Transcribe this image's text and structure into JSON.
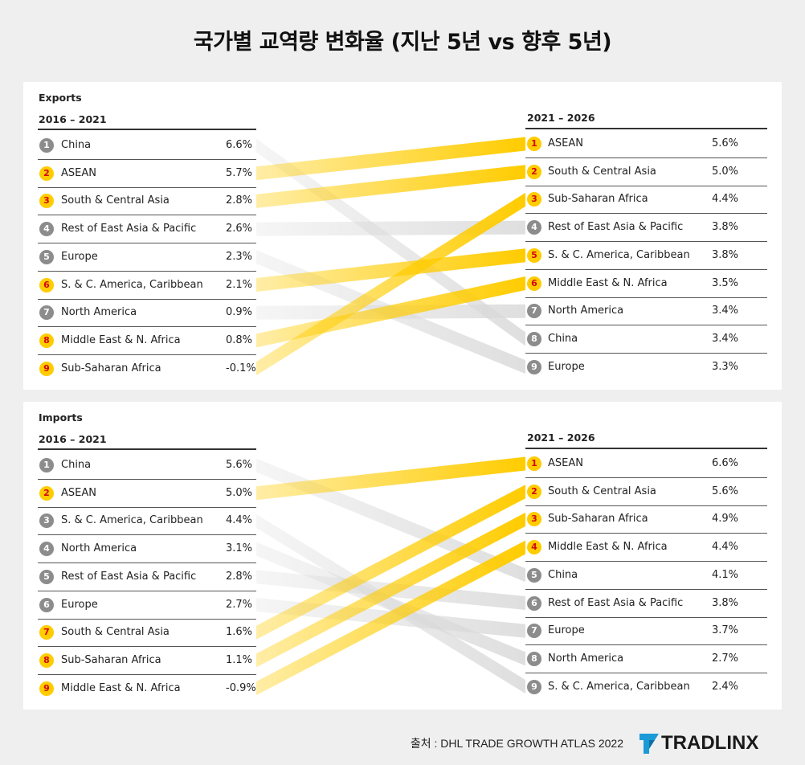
{
  "title": "국가별 교역량 변화율 (지난 5년 vs 향후 5년)",
  "source": "출처 : DHL TRADE GROWTH ATLAS 2022",
  "brand": "TRADLINX",
  "colors": {
    "highlight": "#ffcc00",
    "highlight_text": "#d40511",
    "neutral": "#8c8c8c"
  },
  "chart_data": [
    {
      "type": "slope",
      "title": "Exports",
      "left_period": "2016 – 2021",
      "right_period": "2021 – 2026",
      "left": [
        {
          "rank": "1",
          "name": "China",
          "value": "6.6%"
        },
        {
          "rank": "2",
          "name": "ASEAN",
          "value": "5.7%"
        },
        {
          "rank": "3",
          "name": "South & Central Asia",
          "value": "2.8%"
        },
        {
          "rank": "4",
          "name": "Rest of East Asia & Pacific",
          "value": "2.6%"
        },
        {
          "rank": "5",
          "name": "Europe",
          "value": "2.3%"
        },
        {
          "rank": "6",
          "name": "S. & C. America, Caribbean",
          "value": "2.1%"
        },
        {
          "rank": "7",
          "name": "North America",
          "value": "0.9%"
        },
        {
          "rank": "8",
          "name": "Middle East & N. Africa",
          "value": "0.8%"
        },
        {
          "rank": "9",
          "name": "Sub-Saharan Africa",
          "value": "-0.1%"
        }
      ],
      "right": [
        {
          "rank": "1",
          "name": "ASEAN",
          "value": "5.6%"
        },
        {
          "rank": "2",
          "name": "South & Central Asia",
          "value": "5.0%"
        },
        {
          "rank": "3",
          "name": "Sub-Saharan Africa",
          "value": "4.4%"
        },
        {
          "rank": "4",
          "name": "Rest of East Asia & Pacific",
          "value": "3.8%"
        },
        {
          "rank": "5",
          "name": "S. & C. America, Caribbean",
          "value": "3.8%"
        },
        {
          "rank": "6",
          "name": "Middle East & N. Africa",
          "value": "3.5%"
        },
        {
          "rank": "7",
          "name": "North America",
          "value": "3.4%"
        },
        {
          "rank": "8",
          "name": "China",
          "value": "3.4%"
        },
        {
          "rank": "9",
          "name": "Europe",
          "value": "3.3%"
        }
      ],
      "highlight_left_ranks": [
        2,
        3,
        6,
        8,
        9
      ],
      "highlight_right_ranks": [
        1,
        2,
        3,
        5,
        6
      ]
    },
    {
      "type": "slope",
      "title": "Imports",
      "left_period": "2016 – 2021",
      "right_period": "2021 – 2026",
      "left": [
        {
          "rank": "1",
          "name": "China",
          "value": "5.6%"
        },
        {
          "rank": "2",
          "name": "ASEAN",
          "value": "5.0%"
        },
        {
          "rank": "3",
          "name": "S. & C. America, Caribbean",
          "value": "4.4%"
        },
        {
          "rank": "4",
          "name": "North America",
          "value": "3.1%"
        },
        {
          "rank": "5",
          "name": "Rest of East Asia & Pacific",
          "value": "2.8%"
        },
        {
          "rank": "6",
          "name": "Europe",
          "value": "2.7%"
        },
        {
          "rank": "7",
          "name": "South & Central Asia",
          "value": "1.6%"
        },
        {
          "rank": "8",
          "name": "Sub-Saharan Africa",
          "value": "1.1%"
        },
        {
          "rank": "9",
          "name": "Middle East & N. Africa",
          "value": "-0.9%"
        }
      ],
      "right": [
        {
          "rank": "1",
          "name": "ASEAN",
          "value": "6.6%"
        },
        {
          "rank": "2",
          "name": "South & Central Asia",
          "value": "5.6%"
        },
        {
          "rank": "3",
          "name": "Sub-Saharan Africa",
          "value": "4.9%"
        },
        {
          "rank": "4",
          "name": "Middle East & N. Africa",
          "value": "4.4%"
        },
        {
          "rank": "5",
          "name": "China",
          "value": "4.1%"
        },
        {
          "rank": "6",
          "name": "Rest of East Asia & Pacific",
          "value": "3.8%"
        },
        {
          "rank": "7",
          "name": "Europe",
          "value": "3.7%"
        },
        {
          "rank": "8",
          "name": "North America",
          "value": "2.7%"
        },
        {
          "rank": "9",
          "name": "S. & C. America, Caribbean",
          "value": "2.4%"
        }
      ],
      "highlight_left_ranks": [
        2,
        7,
        8,
        9
      ],
      "highlight_right_ranks": [
        1,
        2,
        3,
        4
      ]
    }
  ]
}
